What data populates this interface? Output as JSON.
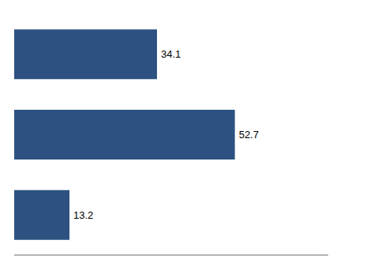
{
  "chart_data": {
    "type": "bar",
    "orientation": "horizontal",
    "categories": [
      null,
      null,
      null
    ],
    "values": [
      34.1,
      52.7,
      13.2
    ],
    "color": "#2d5282",
    "xlim": [
      0,
      75
    ],
    "data_labels": true,
    "tick_labels": false,
    "grid": false
  }
}
